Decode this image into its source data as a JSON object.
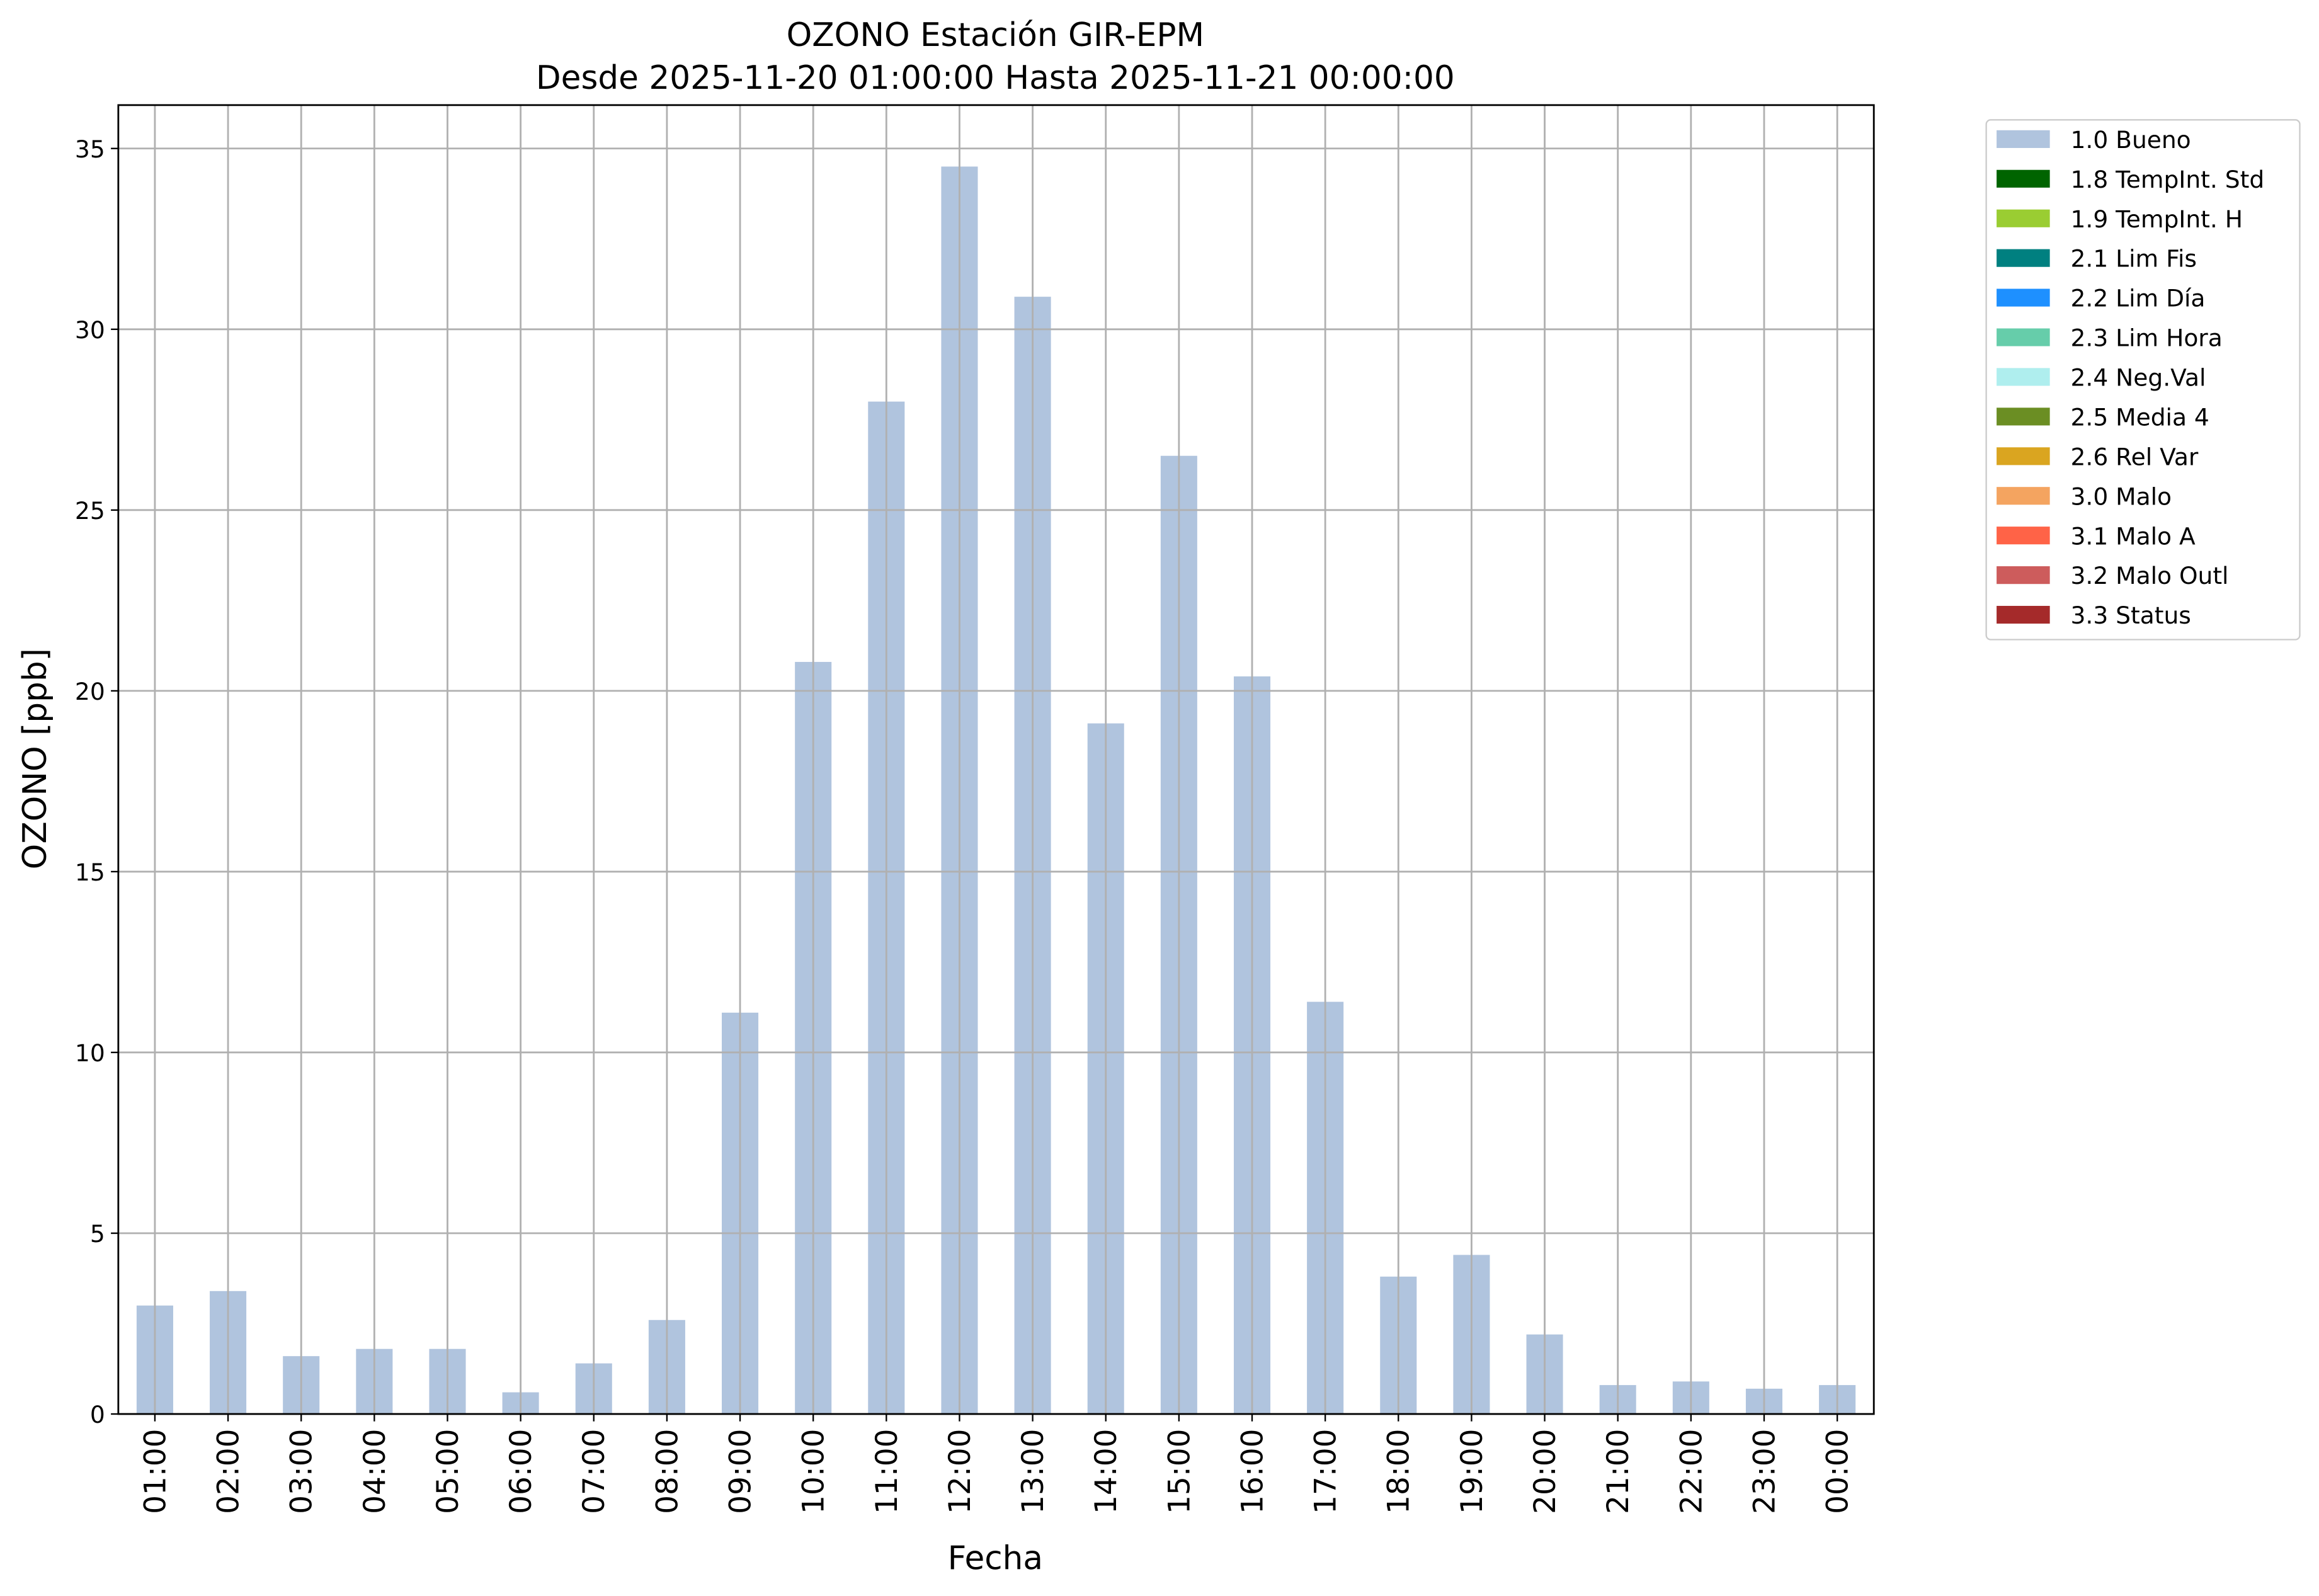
{
  "chart_data": {
    "type": "bar",
    "title": "OZONO Estación GIR-EPM",
    "subtitle": "Desde 2025-11-20 01:00:00 Hasta 2025-11-21 00:00:00",
    "x_label": "Fecha",
    "y_label": "OZONO [ppb]",
    "categories": [
      "01:00",
      "02:00",
      "03:00",
      "04:00",
      "05:00",
      "06:00",
      "07:00",
      "08:00",
      "09:00",
      "10:00",
      "11:00",
      "12:00",
      "13:00",
      "14:00",
      "15:00",
      "16:00",
      "17:00",
      "18:00",
      "19:00",
      "20:00",
      "21:00",
      "22:00",
      "23:00",
      "00:00"
    ],
    "series": [
      {
        "name": "1.0 Bueno",
        "color": "#b0c4de",
        "values": [
          3.0,
          3.4,
          1.6,
          1.8,
          1.8,
          0.6,
          1.4,
          2.6,
          11.1,
          20.8,
          28.0,
          34.5,
          30.9,
          19.1,
          26.5,
          20.4,
          11.4,
          3.8,
          4.4,
          2.2,
          0.8,
          0.9,
          0.7,
          0.8
        ]
      }
    ],
    "legend": [
      {
        "name": "1.0 Bueno",
        "color": "#b0c4de"
      },
      {
        "name": "1.8 TempInt. Std",
        "color": "#006400"
      },
      {
        "name": "1.9 TempInt. H",
        "color": "#9acd32"
      },
      {
        "name": "2.1 Lim Fis",
        "color": "#008080"
      },
      {
        "name": "2.2 Lim Día",
        "color": "#1e90ff"
      },
      {
        "name": "2.3 Lim Hora",
        "color": "#66cdaa"
      },
      {
        "name": "2.4 Neg.Val",
        "color": "#afeeee"
      },
      {
        "name": "2.5 Media 4",
        "color": "#6b8e23"
      },
      {
        "name": "2.6 Rel Var",
        "color": "#daa520"
      },
      {
        "name": "3.0 Malo",
        "color": "#f4a460"
      },
      {
        "name": "3.1 Malo A",
        "color": "#ff6347"
      },
      {
        "name": "3.2 Malo Outl",
        "color": "#cd5c5c"
      },
      {
        "name": "3.3 Status",
        "color": "#a52a2a"
      }
    ],
    "legend_position": "outside upper right",
    "ylim": [
      0,
      36.2
    ],
    "yticks": [
      0,
      5,
      10,
      15,
      20,
      25,
      30,
      35
    ],
    "grid": true
  }
}
